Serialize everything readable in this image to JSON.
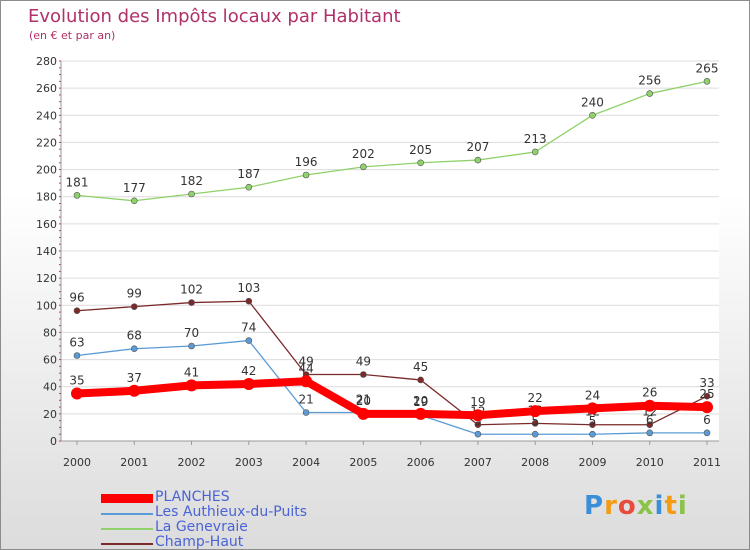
{
  "chart_data": {
    "type": "line",
    "title": "Evolution des Impôts locaux par Habitant",
    "subtitle": "(en € et par an)",
    "xlabel": "",
    "ylabel": "",
    "x": [
      "2000",
      "2001",
      "2002",
      "2003",
      "2004",
      "2005",
      "2006",
      "2007",
      "2008",
      "2009",
      "2010",
      "2011"
    ],
    "ylim": [
      0,
      280
    ],
    "yticks": [
      0,
      20,
      40,
      60,
      80,
      100,
      120,
      140,
      160,
      180,
      200,
      220,
      240,
      260,
      280
    ],
    "grid": "horizontal",
    "legend_position": "bottom-left",
    "series": [
      {
        "name": "PLANCHES",
        "color": "#ff0000",
        "values": [
          35,
          37,
          41,
          42,
          44,
          20,
          20,
          19,
          22,
          24,
          26,
          25
        ],
        "labels": [
          "35",
          "37",
          "41",
          "42",
          "44",
          "20",
          "20",
          "19",
          "22",
          "24",
          "26",
          "25"
        ]
      },
      {
        "name": "Les Authieux-du-Puits",
        "color": "#5b9bd5",
        "values": [
          63,
          68,
          70,
          74,
          21,
          21,
          19,
          5,
          5,
          5,
          6,
          6
        ],
        "labels": [
          "63",
          "68",
          "70",
          "74",
          "21",
          "21",
          "19",
          "5",
          "5",
          "5",
          "6",
          "6"
        ]
      },
      {
        "name": "La Genevraie",
        "color": "#8fd16a",
        "values": [
          181,
          177,
          182,
          187,
          196,
          202,
          205,
          207,
          213,
          240,
          256,
          265
        ],
        "labels": [
          "181",
          "177",
          "182",
          "187",
          "196",
          "202",
          "205",
          "207",
          "213",
          "240",
          "256",
          "265"
        ]
      },
      {
        "name": "Champ-Haut",
        "color": "#7a2a2a",
        "values": [
          96,
          99,
          102,
          103,
          49,
          49,
          45,
          12,
          13,
          12,
          12,
          33
        ],
        "labels": [
          "96",
          "99",
          "102",
          "103",
          "49",
          "49",
          "45",
          "12",
          "13",
          "12",
          "12",
          "33"
        ]
      }
    ]
  },
  "logo_text": "Proxiti"
}
